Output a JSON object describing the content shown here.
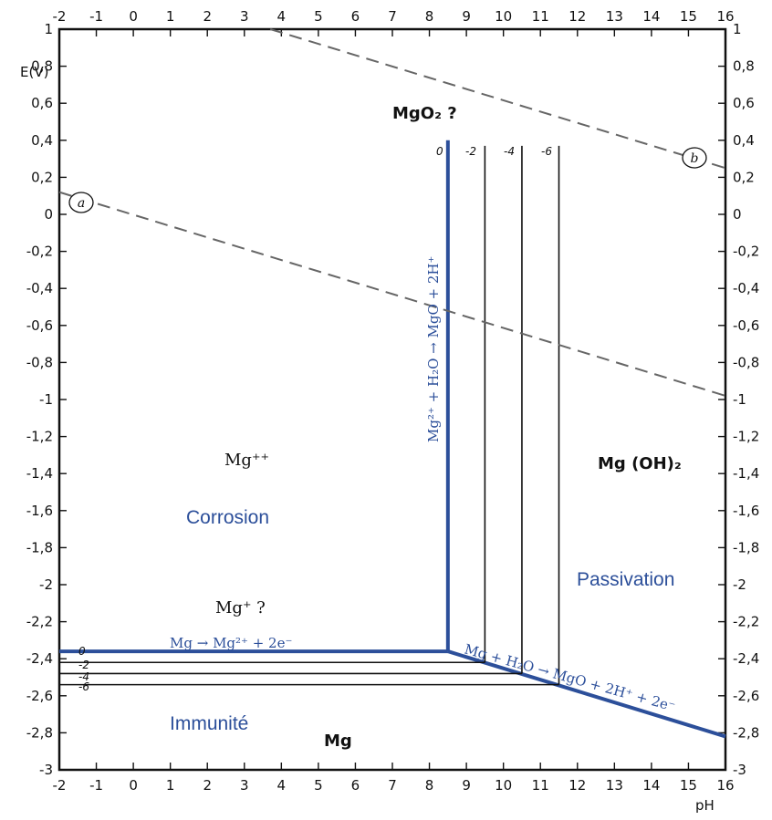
{
  "chart_data": {
    "type": "line",
    "title": "",
    "xlabel": "pH",
    "ylabel": "E(V)",
    "xlim": [
      -2,
      16
    ],
    "ylim": [
      -3,
      1
    ],
    "x_ticks": [
      "-2",
      "-1",
      "0",
      "1",
      "2",
      "3",
      "4",
      "5",
      "6",
      "7",
      "8",
      "9",
      "10",
      "11",
      "12",
      "13",
      "14",
      "15",
      "16"
    ],
    "y_ticks_left": [
      "1",
      "0,8",
      "0,6",
      "0,4",
      "0,2",
      "0",
      "-0,2",
      "-0,4",
      "-0,6",
      "-0,8",
      "-1",
      "-1,2",
      "-1,4",
      "-1,6",
      "-1,8",
      "-2",
      "-2,2",
      "-2,4",
      "-2,6",
      "-2,8",
      "-3"
    ],
    "y_ticks_right": [
      "1",
      "0,8",
      "0,6",
      "0,4",
      "0,2",
      "0",
      "-0,2",
      "-0,4",
      "-0,6",
      "-0,8",
      "-1",
      "-1,2",
      "-1,4",
      "-1,6",
      "-1,8",
      "-2",
      "-2,2",
      "-2,4",
      "-2,6",
      "-2,8",
      "-3"
    ],
    "series": [
      {
        "name": "Mg → Mg²⁺ + 2e⁻",
        "color": "#2c4f9a",
        "style": "thick",
        "x": [
          -2,
          8.5
        ],
        "y": [
          -2.36,
          -2.36
        ]
      },
      {
        "name": "Mg²⁺ + H₂O → MgO + 2H⁺",
        "color": "#2c4f9a",
        "style": "thick",
        "x": [
          8.5,
          8.5
        ],
        "y": [
          -2.36,
          0.4
        ]
      },
      {
        "name": "Mg + H₂O → MgO + 2H⁺ + 2e⁻",
        "color": "#2c4f9a",
        "style": "thick",
        "x": [
          8.5,
          16
        ],
        "y": [
          -2.36,
          -2.82
        ]
      },
      {
        "name": "",
        "color": "#111111",
        "style": "thin",
        "x": [
          -2,
          9.5
        ],
        "y": [
          -2.42,
          -2.42
        ]
      },
      {
        "name": "",
        "color": "#111111",
        "style": "thin",
        "x": [
          -2,
          10.5
        ],
        "y": [
          -2.48,
          -2.48
        ]
      },
      {
        "name": "",
        "color": "#111111",
        "style": "thin",
        "x": [
          -2,
          11.5
        ],
        "y": [
          -2.54,
          -2.54
        ]
      },
      {
        "name": "",
        "color": "#111111",
        "style": "thin",
        "x": [
          9.5,
          9.5
        ],
        "y": [
          -2.42,
          0.37
        ]
      },
      {
        "name": "",
        "color": "#111111",
        "style": "thin",
        "x": [
          10.5,
          10.5
        ],
        "y": [
          -2.48,
          0.37
        ]
      },
      {
        "name": "",
        "color": "#111111",
        "style": "thin",
        "x": [
          11.5,
          11.5
        ],
        "y": [
          -2.54,
          0.37
        ]
      },
      {
        "name": "",
        "color": "#666666",
        "style": "dashed",
        "x": [
          -2,
          16
        ],
        "y": [
          0.12,
          -0.98
        ]
      },
      {
        "name": "",
        "color": "#666666",
        "style": "dashed",
        "x": [
          3.7,
          16
        ],
        "y": [
          1.0,
          0.25
        ]
      }
    ],
    "concentration_labels": {
      "horizontal": [
        "0",
        "-2",
        "-4",
        "-6"
      ],
      "vertical": [
        "0",
        "-2",
        "-4",
        "-6"
      ]
    },
    "line_markers": [
      "a",
      "b"
    ],
    "region_labels": {
      "mgo2": "MgO₂ ?",
      "mg_pp": "Mg⁺⁺",
      "mg_plus": "Mg⁺ ?",
      "mg_oh2": "Mg (OH)₂",
      "mg": "Mg"
    },
    "zones": {
      "corrosion": "Corrosion",
      "passivation": "Passivation",
      "immunite": "Immunité"
    },
    "equations": {
      "horizontal": "Mg → Mg²⁺ + 2e⁻",
      "vertical": "Mg²⁺ + H₂O → MgO + 2H⁺",
      "sloped": "Mg + H₂O → MgO + 2H⁺ + 2e⁻"
    }
  }
}
